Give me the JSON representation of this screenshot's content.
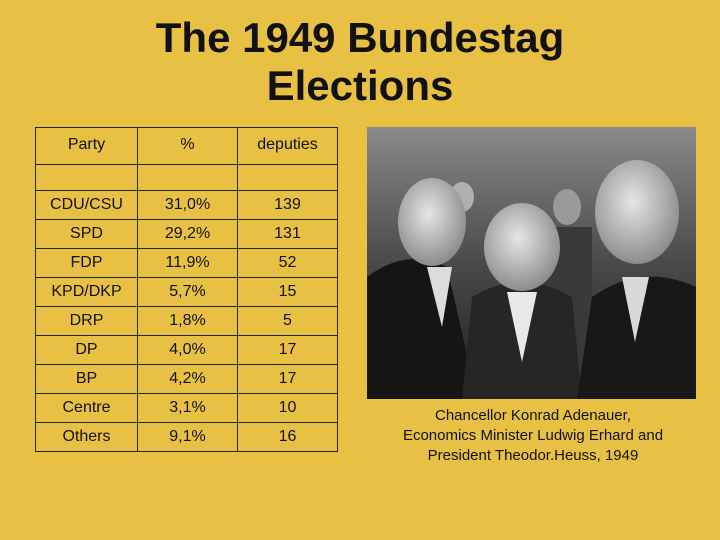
{
  "title": {
    "line1": "The 1949 Bundestag",
    "line2": "Elections"
  },
  "table": {
    "headers": [
      "Party",
      "%",
      "deputies"
    ],
    "rows": [
      [
        "CDU/CSU",
        "31,0%",
        "139"
      ],
      [
        "SPD",
        "29,2%",
        "131"
      ],
      [
        "FDP",
        "11,9%",
        "52"
      ],
      [
        "KPD/DKP",
        "5,7%",
        "15"
      ],
      [
        "DRP",
        "1,8%",
        "5"
      ],
      [
        "DP",
        "4,0%",
        "17"
      ],
      [
        "BP",
        "4,2%",
        "17"
      ],
      [
        "Centre",
        "3,1%",
        "10"
      ],
      [
        "Others",
        "9,1%",
        "16"
      ]
    ]
  },
  "caption": {
    "line1": "Chancellor Konrad Adenauer,",
    "line2": "Economics Minister Ludwig Erhard and",
    "line3": "President Theodor.Heuss, 1949"
  },
  "colors": {
    "background": "#e8c044",
    "text": "#111111",
    "border": "#222222"
  },
  "photo": {
    "description_icon": "black-and-white-photo"
  }
}
